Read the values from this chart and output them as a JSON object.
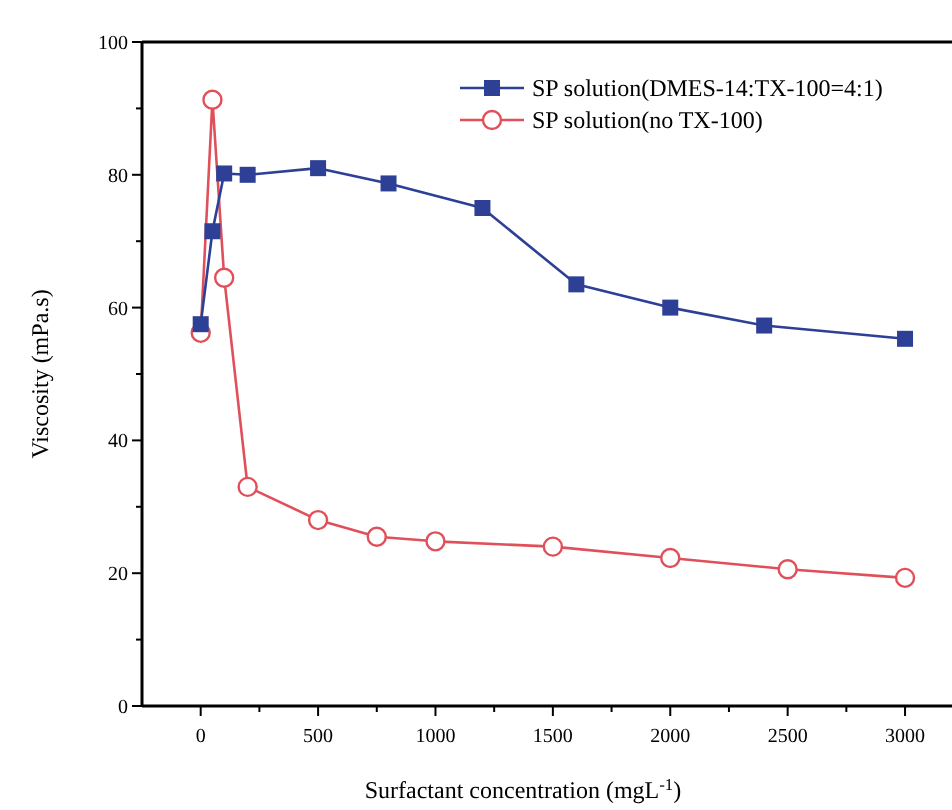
{
  "chart_data": {
    "type": "line",
    "xlabel": "Surfactant concentration (mgL$^{-1}$)",
    "ylabel": "Viscosity (mPa.s)",
    "xlim": [
      -250,
      3200
    ],
    "xticks": [
      0,
      500,
      1000,
      1500,
      2000,
      2500,
      3000
    ],
    "ylim": [
      0,
      100
    ],
    "yticks": [
      0,
      20,
      40,
      60,
      80,
      100
    ],
    "grid": false,
    "legend": "top right",
    "series": [
      {
        "name": "SP solution(DMES-14:TX-100=4:1)",
        "color": "#2e3f96",
        "marker": "square",
        "x": [
          0,
          50,
          100,
          200,
          500,
          800,
          1200,
          1600,
          2000,
          2400,
          3000
        ],
        "values": [
          57.5,
          71.5,
          80.2,
          80,
          81,
          78.7,
          75,
          63.5,
          60,
          57.3,
          55.3
        ]
      },
      {
        "name": "SP solution(no TX-100)",
        "color": "#e0505a",
        "marker": "circle",
        "x": [
          0,
          50,
          100,
          200,
          500,
          750,
          1000,
          1500,
          2000,
          2500,
          3000
        ],
        "values": [
          56.2,
          91.3,
          64.5,
          33,
          28,
          25.5,
          24.8,
          24,
          22.3,
          20.6,
          19.3
        ]
      }
    ]
  }
}
